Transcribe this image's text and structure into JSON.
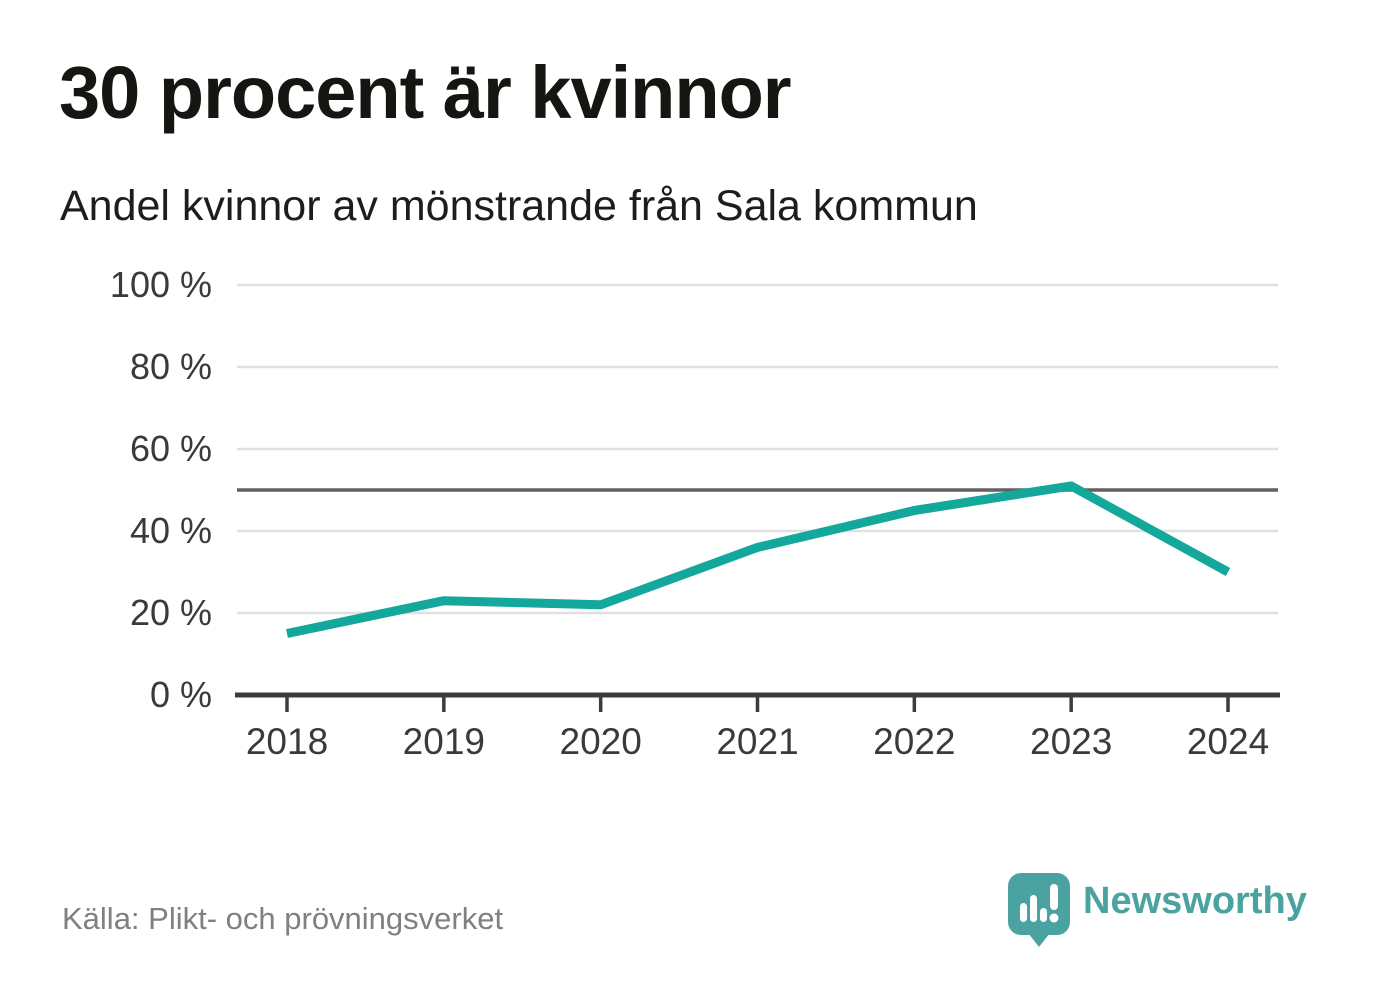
{
  "chart_data": {
    "type": "line",
    "title": "30 procent är kvinnor",
    "subtitle": "Andel kvinnor av mönstrande från Sala kommun",
    "x": [
      2018,
      2019,
      2020,
      2021,
      2022,
      2023,
      2024
    ],
    "series": [
      {
        "name": "Andel kvinnor av mönstrande",
        "values": [
          15,
          23,
          22,
          36,
          45,
          51,
          30
        ]
      }
    ],
    "unit": "%",
    "ylim": [
      0,
      100
    ],
    "yticks": [
      0,
      20,
      40,
      60,
      80,
      100
    ],
    "ytick_suffix": " %",
    "reference_line": 50,
    "grid": true,
    "legend_position": "none",
    "colors": {
      "line": "#13A89B",
      "grid": "#E0E0E0",
      "reference": "#616161",
      "axis": "#3C3C3C",
      "tick_label": "#3A3A3A"
    }
  },
  "footer": {
    "source": "Källa: Plikt- och prövningsverket",
    "brand": "Newsworthy",
    "brand_color": "#4AA3A0"
  }
}
